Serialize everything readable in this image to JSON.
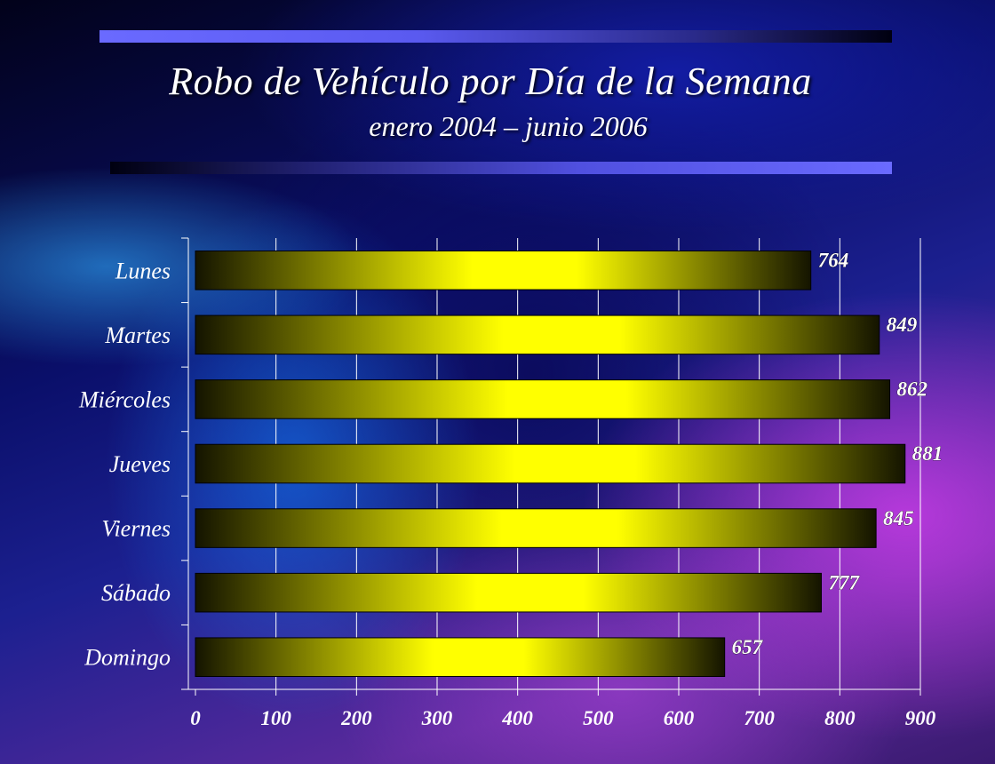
{
  "title": "Robo de Vehículo por Día de la Semana",
  "subtitle": "enero 2004 – junio 2006",
  "chart_data": {
    "type": "bar",
    "orientation": "horizontal",
    "categories": [
      "Lunes",
      "Martes",
      "Miércoles",
      "Jueves",
      "Viernes",
      "Sábado",
      "Domingo"
    ],
    "values": [
      764,
      849,
      862,
      881,
      845,
      777,
      657
    ],
    "xlim": [
      0,
      900
    ],
    "xticks": [
      0,
      100,
      200,
      300,
      400,
      500,
      600,
      700,
      800,
      900
    ],
    "grid": true,
    "legend": "none",
    "colors": {
      "bar_center": "#ffff00",
      "bar_edge": "#141400",
      "grid": "#ffffff",
      "text": "#ffffff"
    }
  }
}
